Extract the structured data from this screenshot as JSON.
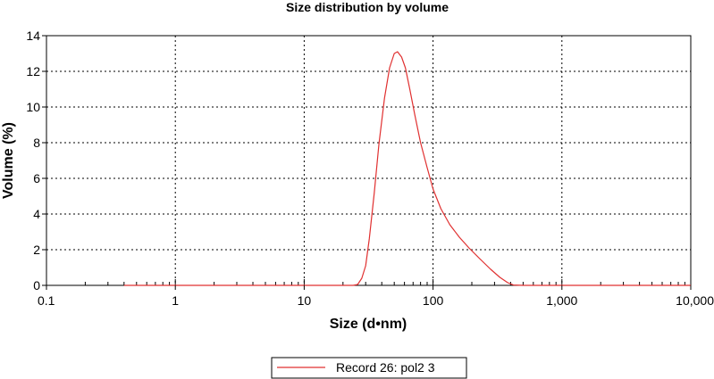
{
  "chart_data": {
    "type": "line",
    "title": "Size distribution by volume",
    "xlabel": "Size (d•nm)",
    "ylabel": "Volume (%)",
    "x_scale": "log",
    "xlim": [
      0.1,
      10000
    ],
    "ylim": [
      0,
      14
    ],
    "x_ticks": [
      0.1,
      1,
      10,
      100,
      1000,
      10000
    ],
    "x_tick_labels": [
      "0.1",
      "1",
      "10",
      "100",
      "1,000",
      "10,000"
    ],
    "y_ticks": [
      0,
      2,
      4,
      6,
      8,
      10,
      12,
      14
    ],
    "y_tick_labels": [
      "0",
      "2",
      "4",
      "6",
      "8",
      "10",
      "12",
      "14"
    ],
    "grid": true,
    "legend": "bottom-center",
    "series": [
      {
        "name": "Record 26: pol2 3",
        "color": "#e03030",
        "x": [
          0.4,
          1,
          10,
          24,
          26,
          28,
          30,
          32,
          35,
          38,
          42,
          46,
          50,
          53,
          57,
          61,
          66,
          72,
          80,
          90,
          100,
          115,
          135,
          160,
          190,
          230,
          280,
          330,
          380,
          420,
          500,
          1000,
          10000
        ],
        "y": [
          0,
          0,
          0,
          0,
          0.05,
          0.4,
          1.1,
          2.6,
          5.2,
          7.9,
          10.5,
          12.2,
          13.0,
          13.1,
          12.8,
          12.2,
          11.0,
          9.6,
          8.0,
          6.6,
          5.4,
          4.3,
          3.4,
          2.7,
          2.1,
          1.5,
          0.9,
          0.45,
          0.15,
          0.02,
          0,
          0,
          0
        ]
      }
    ]
  }
}
